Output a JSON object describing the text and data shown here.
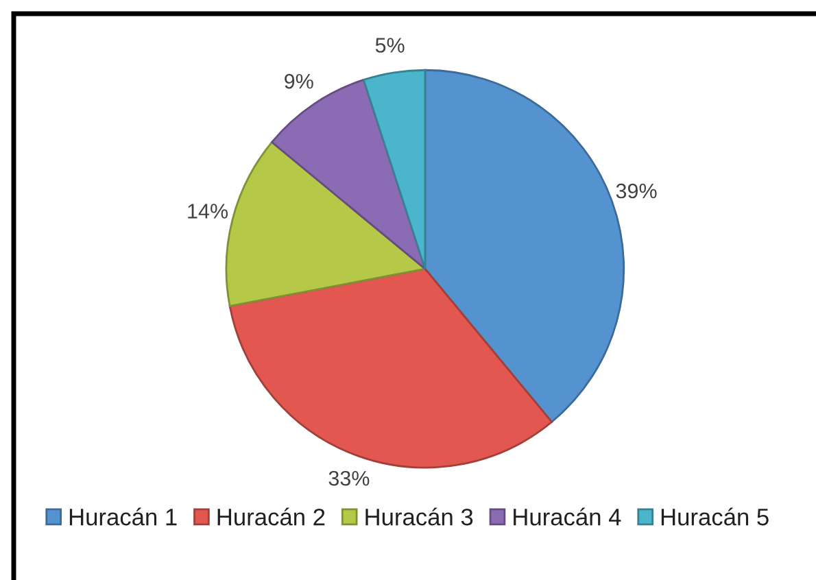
{
  "chart_data": {
    "type": "pie",
    "categories": [
      "Huracán 1",
      "Huracán 2",
      "Huracán 3",
      "Huracán 4",
      "Huracán 5"
    ],
    "values": [
      39,
      33,
      14,
      9,
      5
    ],
    "value_labels": [
      "39%",
      "33%",
      "14%",
      "9%",
      "5%"
    ],
    "colors": [
      "#5593d0",
      "#e2574f",
      "#b5c848",
      "#8c6bb5",
      "#4bb5cb"
    ],
    "legend": "bottom"
  }
}
